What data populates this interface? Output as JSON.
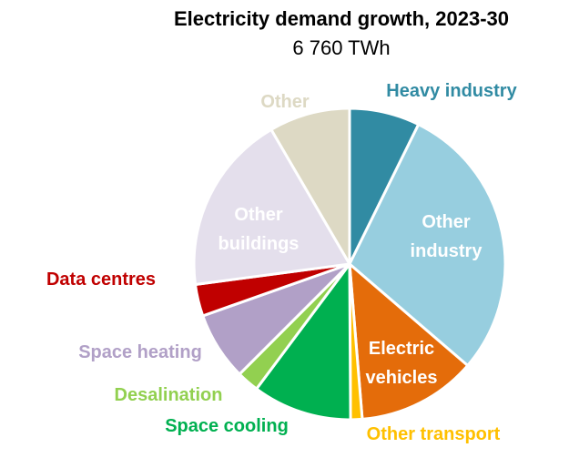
{
  "chart_data": {
    "type": "pie",
    "title": "Electricity demand growth, 2023-30",
    "subtitle": "6 760 TWh",
    "slices": [
      {
        "label": "Heavy industry",
        "value": 7.3,
        "color": "#318ba3",
        "label_color": "#318ba3",
        "inside": false
      },
      {
        "label": "Other industry",
        "value": 29.0,
        "color": "#97cedf",
        "label_color": "#ffffff",
        "inside": true
      },
      {
        "label": "Electric vehicles",
        "value": 12.4,
        "color": "#e46c0a",
        "label_color": "#ffffff",
        "inside": true
      },
      {
        "label": "Other transport",
        "value": 1.2,
        "color": "#ffc000",
        "label_color": "#ffc000",
        "inside": false
      },
      {
        "label": "Space cooling",
        "value": 10.3,
        "color": "#00b050",
        "label_color": "#00b050",
        "inside": false
      },
      {
        "label": "Desalination",
        "value": 2.3,
        "color": "#92d050",
        "label_color": "#92d050",
        "inside": false
      },
      {
        "label": "Space heating",
        "value": 7.1,
        "color": "#b1a0c7",
        "label_color": "#b1a0c7",
        "inside": false
      },
      {
        "label": "Data centres",
        "value": 3.3,
        "color": "#c00000",
        "label_color": "#c00000",
        "inside": false
      },
      {
        "label": "Other buildings",
        "value": 18.7,
        "color": "#e4dfec",
        "label_color": "#ffffff",
        "inside": true
      },
      {
        "label": "Other",
        "value": 8.4,
        "color": "#ddd9c4",
        "label_color": "#ddd9c4",
        "inside": false
      }
    ],
    "legend": "none"
  }
}
